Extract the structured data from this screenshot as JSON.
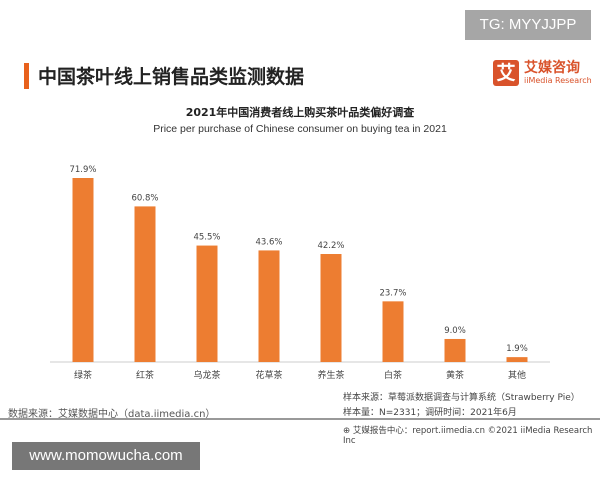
{
  "watermark": "TG: MYYJJPP",
  "header": {
    "title": "中国茶叶线上销售品类监测数据",
    "logo_mark": "艾",
    "logo_cn": "艾媒咨询",
    "logo_en": "iiMedia Research"
  },
  "chart_data": {
    "type": "bar",
    "title": "2021年中国消费者线上购买茶叶品类偏好调查",
    "subtitle": "Price per purchase of Chinese consumer on buying tea in 2021",
    "categories": [
      "绿茶",
      "红茶",
      "乌龙茶",
      "花草茶",
      "养生茶",
      "白茶",
      "黄茶",
      "其他"
    ],
    "values": [
      71.9,
      60.8,
      45.5,
      43.6,
      42.2,
      23.7,
      9.0,
      1.9
    ],
    "labels": [
      "71.9%",
      "60.8%",
      "45.5%",
      "43.6%",
      "42.2%",
      "23.7%",
      "9.0%",
      "1.9%"
    ],
    "unit": "%",
    "ylim": [
      0,
      80
    ],
    "grid": false,
    "color": "#ed7d31"
  },
  "footer": {
    "sample_source": "样本来源：草莓派数据调查与计算系统（Strawberry Pie）",
    "sample_size": "样本量：N=2331；调研时间：2021年6月",
    "data_source": "数据来源：艾媒数据中心（data.iimedia.cn）",
    "report": "艾媒报告中心：report.iimedia.cn  ©2021  iiMedia Research  Inc"
  },
  "site_watermark": "www.momowucha.com"
}
